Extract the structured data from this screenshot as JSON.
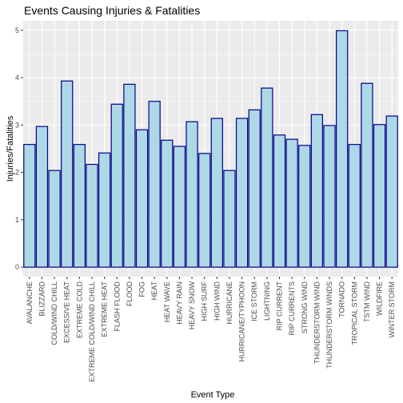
{
  "chart_data": {
    "type": "bar",
    "title": "Events Causing Injuries & Fatalities",
    "xlabel": "Event Type",
    "ylabel": "Injuries/Fatalities",
    "ylim": [
      -0.2,
      5.2
    ],
    "yticks": [
      0,
      1,
      2,
      3,
      4,
      5
    ],
    "grid": true,
    "colors": {
      "panel": "#ebebeb",
      "grid": "#ffffff",
      "bar_fill": "#add8e6",
      "bar_stroke": "#00008b",
      "tick": "#333333"
    },
    "categories": [
      "AVALANCHE",
      "BLIZZARD",
      "COLD/WIND CHILL",
      "EXCESSIVE HEAT",
      "EXTREME COLD",
      "EXTREME COLD/WIND CHILL",
      "EXTREME HEAT",
      "FLASH FLOOD",
      "FLOOD",
      "FOG",
      "HEAT",
      "HEAT WAVE",
      "HEAVY RAIN",
      "HEAVY SNOW",
      "HIGH SURF",
      "HIGH WIND",
      "HURRICANE",
      "HURRICANE/TYPHOON",
      "ICE STORM",
      "LIGHTNING",
      "RIP CURRENT",
      "RIP CURRENTS",
      "STRONG WIND",
      "THUNDERSTORM WIND",
      "THUNDERSTORM WINDS",
      "TORNADO",
      "TROPICAL STORM",
      "TSTM WIND",
      "WILDFIRE",
      "WINTER STORM"
    ],
    "values": [
      2.59,
      2.97,
      2.04,
      3.93,
      2.59,
      2.17,
      2.41,
      3.44,
      3.86,
      2.9,
      3.5,
      2.68,
      2.55,
      3.07,
      2.4,
      3.14,
      2.04,
      3.14,
      3.32,
      3.78,
      2.79,
      2.7,
      2.57,
      3.22,
      2.99,
      4.99,
      2.59,
      3.88,
      3.01,
      3.19
    ]
  }
}
